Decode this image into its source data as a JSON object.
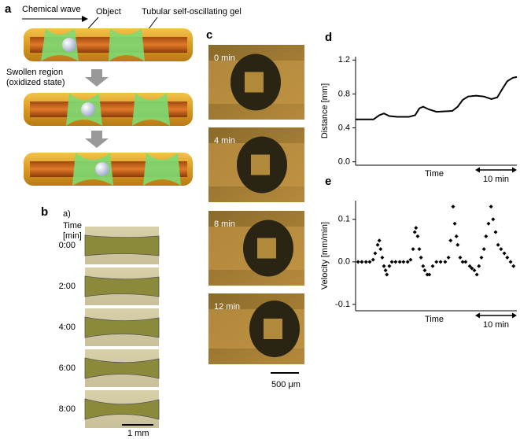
{
  "panels": {
    "a": {
      "label": "a",
      "chemical_wave": "Chemical wave",
      "object": "Object",
      "gel": "Tubular self-oscillating gel",
      "swollen": [
        "Swollen region",
        "(oxidized state)"
      ]
    },
    "b": {
      "label": "b",
      "sub": "a)",
      "time_header": [
        "Time",
        "[min]"
      ],
      "times": [
        "0:00",
        "2:00",
        "4:00",
        "6:00",
        "8:00"
      ],
      "scale_bar": "1 mm"
    },
    "c": {
      "label": "c",
      "times": [
        "0 min",
        "4 min",
        "8 min",
        "12 min"
      ],
      "scale_bar": "500 μm"
    }
  },
  "chart_data": [
    {
      "type": "line",
      "panel_label": "d",
      "ylabel": "Distance [mm]",
      "xlabel": "Time",
      "color": "#000000",
      "scale_bar": {
        "value": 10,
        "label": "10 min"
      },
      "x": [
        0,
        4.3,
        5.7,
        6.8,
        8.1,
        10,
        12.8,
        14.3,
        15.3,
        16.2,
        17.5,
        19.4,
        23.2,
        24.5,
        25.7,
        27,
        28.9,
        30.8,
        32.6,
        34,
        35.1,
        36.4,
        37.7,
        38.7
      ],
      "values": [
        0.5,
        0.5,
        0.55,
        0.57,
        0.54,
        0.53,
        0.53,
        0.55,
        0.63,
        0.65,
        0.62,
        0.59,
        0.6,
        0.65,
        0.73,
        0.77,
        0.78,
        0.77,
        0.74,
        0.76,
        0.85,
        0.95,
        0.99,
        1.0
      ],
      "xlim": [
        0,
        38.7
      ],
      "ylim": [
        -0.04,
        1.24
      ],
      "yticks": [
        {
          "value": 0,
          "label": "0.0"
        },
        0.4,
        0.8,
        1.2
      ]
    },
    {
      "type": "scatter",
      "panel_label": "e",
      "ylabel": "Velocity [mm/min]",
      "xlabel": "Time",
      "color": "#000000",
      "scale_bar": {
        "value": 10,
        "label": "10 min"
      },
      "x": [
        0.6,
        1.5,
        2.5,
        3.4,
        4.2,
        4.7,
        5.3,
        5.7,
        6.0,
        6.4,
        6.8,
        7.2,
        7.5,
        8.1,
        8.7,
        9.6,
        10.6,
        11.5,
        12.5,
        13.2,
        13.8,
        14.2,
        14.5,
        14.9,
        15.3,
        15.7,
        16.2,
        16.6,
        17.2,
        17.7,
        18.5,
        19.4,
        20.4,
        21.5,
        22.3,
        22.8,
        23.4,
        23.8,
        24.2,
        24.5,
        25.1,
        25.7,
        26.4,
        27.4,
        27.9,
        28.5,
        29.1,
        29.6,
        30.2,
        30.8,
        31.3,
        31.9,
        32.5,
        33.0,
        33.6,
        34.2,
        34.9,
        35.7,
        36.4,
        37.2,
        37.9
      ],
      "values": [
        0,
        0,
        0,
        0,
        0.005,
        0.02,
        0.04,
        0.05,
        0.03,
        0.01,
        -0.01,
        -0.02,
        -0.03,
        -0.01,
        0,
        0,
        0,
        0,
        0,
        0.005,
        0.03,
        0.07,
        0.08,
        0.06,
        0.03,
        0.01,
        -0.01,
        -0.02,
        -0.03,
        -0.03,
        -0.01,
        0,
        0,
        0,
        0.01,
        0.05,
        0.13,
        0.09,
        0.06,
        0.04,
        0.01,
        0,
        0,
        -0.01,
        -0.015,
        -0.02,
        -0.03,
        -0.01,
        0.01,
        0.03,
        0.06,
        0.09,
        0.13,
        0.1,
        0.07,
        0.04,
        0.03,
        0.02,
        0.01,
        0,
        -0.01
      ],
      "xlim": [
        0,
        38.7
      ],
      "ylim": [
        -0.115,
        0.144
      ],
      "yticks": [
        {
          "value": -0.1,
          "label": "-0.1"
        },
        {
          "value": 0,
          "label": "0.0"
        },
        0.1
      ]
    }
  ]
}
